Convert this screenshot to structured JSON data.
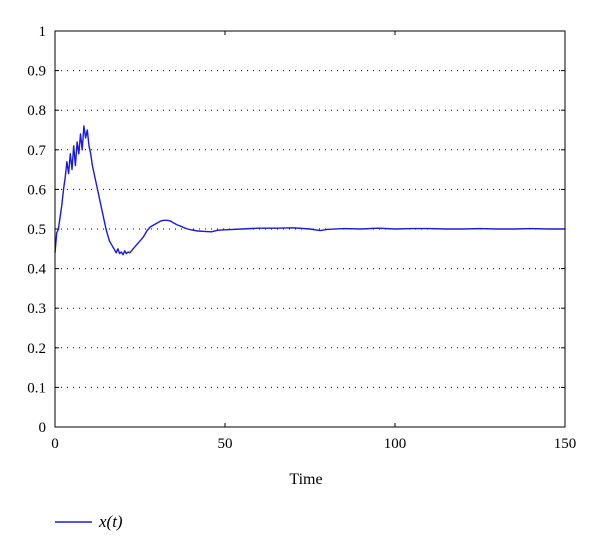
{
  "chart_data": {
    "type": "line",
    "title": "",
    "xlabel": "Time",
    "ylabel": "",
    "xlim": [
      0,
      150
    ],
    "ylim": [
      0,
      1
    ],
    "xticks": [
      0,
      50,
      100,
      150
    ],
    "yticks": [
      0,
      0.1,
      0.2,
      0.3,
      0.4,
      0.5,
      0.6,
      0.7,
      0.8,
      0.9,
      1
    ],
    "grid": "dotted-horizontal",
    "legend_position": "bottom-left",
    "series": [
      {
        "name": "x(t)",
        "color": "#1a1adb",
        "x": [
          0,
          0.5,
          1,
          1.5,
          2,
          2.5,
          3,
          3.5,
          4,
          4.5,
          5,
          5.5,
          6,
          6.5,
          7,
          7.5,
          8,
          8.5,
          9,
          9.5,
          10,
          10.5,
          11,
          12,
          13,
          14,
          15,
          16,
          17,
          18,
          18.5,
          19,
          19.5,
          20,
          20.5,
          21,
          21.5,
          22,
          23,
          24,
          25,
          26,
          27,
          28,
          29,
          30,
          31,
          32,
          33,
          34,
          35,
          36,
          37,
          38,
          39,
          40,
          42,
          44,
          46,
          48,
          50,
          55,
          60,
          65,
          70,
          75,
          78,
          80,
          85,
          90,
          95,
          100,
          105,
          110,
          115,
          120,
          125,
          130,
          135,
          140,
          145,
          150
        ],
        "y": [
          0.44,
          0.49,
          0.5,
          0.53,
          0.56,
          0.6,
          0.63,
          0.67,
          0.64,
          0.69,
          0.65,
          0.71,
          0.66,
          0.72,
          0.69,
          0.74,
          0.7,
          0.76,
          0.73,
          0.75,
          0.71,
          0.69,
          0.66,
          0.62,
          0.58,
          0.54,
          0.5,
          0.47,
          0.455,
          0.44,
          0.45,
          0.438,
          0.442,
          0.435,
          0.445,
          0.438,
          0.442,
          0.44,
          0.45,
          0.46,
          0.47,
          0.48,
          0.495,
          0.505,
          0.51,
          0.515,
          0.52,
          0.522,
          0.522,
          0.52,
          0.515,
          0.51,
          0.507,
          0.503,
          0.5,
          0.498,
          0.495,
          0.494,
          0.493,
          0.497,
          0.498,
          0.5,
          0.502,
          0.502,
          0.503,
          0.5,
          0.496,
          0.499,
          0.501,
          0.5,
          0.502,
          0.5,
          0.501,
          0.501,
          0.5,
          0.5,
          0.501,
          0.5,
          0.5,
          0.501,
          0.5,
          0.5
        ]
      }
    ]
  }
}
